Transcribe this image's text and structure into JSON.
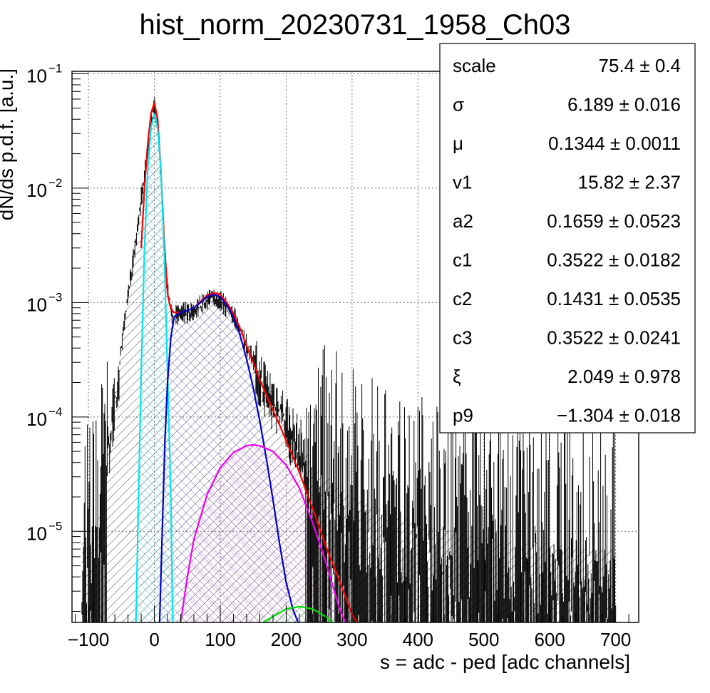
{
  "chart_data": {
    "type": "line",
    "title": "hist_norm_20230731_1958_Ch03",
    "xlabel": "s = adc - ped [adc channels]",
    "ylabel": "dN/ds p.d.f. [a.u.]",
    "xlim": [
      -125,
      735
    ],
    "ylim": [
      1.6e-06,
      0.105
    ],
    "yscale": "log",
    "grid": true,
    "x_ticks": [
      -100,
      0,
      100,
      200,
      300,
      400,
      500,
      600,
      700
    ],
    "x_tick_labels": [
      "−100",
      "0",
      "100",
      "200",
      "300",
      "400",
      "500",
      "600",
      "700"
    ],
    "y_ticks": [
      {
        "value": 0.1,
        "base": "10",
        "exp": "−1"
      },
      {
        "value": 0.01,
        "base": "10",
        "exp": "−2"
      },
      {
        "value": 0.001,
        "base": "10",
        "exp": "−3"
      },
      {
        "value": 0.0001,
        "base": "10",
        "exp": "−4"
      },
      {
        "value": 1e-05,
        "base": "10",
        "exp": "−5"
      }
    ],
    "stats_box": {
      "position": "top-right",
      "rows": [
        {
          "name": "scale",
          "value": "75.4",
          "error": "± 0.4"
        },
        {
          "name": "σ",
          "value": "6.189",
          "error": "± 0.016"
        },
        {
          "name": "μ",
          "value": "0.1344",
          "error": "± 0.0011"
        },
        {
          "name": "v1",
          "value": "15.82",
          "error": "± 2.37"
        },
        {
          "name": "a2",
          "value": "0.1659",
          "error": "± 0.0523"
        },
        {
          "name": "c1",
          "value": "0.3522",
          "error": "± 0.0182"
        },
        {
          "name": "c2",
          "value": "0.1431",
          "error": "± 0.0535"
        },
        {
          "name": "c3",
          "value": "0.3522",
          "error": "± 0.0241"
        },
        {
          "name": "ξ",
          "value": "2.049",
          "error": "± 0.978"
        },
        {
          "name": "p9",
          "value": "−1.304",
          "error": "± 0.018"
        }
      ]
    },
    "series": [
      {
        "color": "#000000",
        "role": "data-histogram",
        "x": [
          -110,
          -90,
          -75,
          -70,
          -60,
          -50,
          -40,
          -30,
          -20,
          -10,
          -5,
          0,
          5,
          10,
          15,
          20,
          25,
          30,
          40,
          50,
          60,
          70,
          80,
          90,
          100,
          110,
          120,
          130,
          140,
          150,
          160,
          170,
          180,
          190,
          200,
          220,
          240,
          260,
          280,
          300,
          350,
          400,
          450,
          500,
          550,
          600,
          650,
          700
        ],
        "y": [
          8e-06,
          8e-06,
          3e-05,
          6e-05,
          0.00015,
          0.0004,
          0.0012,
          0.003,
          0.0085,
          0.022,
          0.038,
          0.055,
          0.038,
          0.012,
          0.003,
          0.0013,
          0.0009,
          0.0008,
          0.00085,
          0.00085,
          0.0009,
          0.001,
          0.00112,
          0.0012,
          0.0011,
          0.00095,
          0.0008,
          0.0006,
          0.00045,
          0.00033,
          0.00024,
          0.00019,
          0.00016,
          0.00013,
          0.0001,
          6e-05,
          4e-05,
          3e-05,
          2.5e-05,
          2e-05,
          1.5e-05,
          1.2e-05,
          1e-05,
          9e-06,
          8e-06,
          8e-06,
          7e-06,
          7e-06
        ]
      },
      {
        "color": "#ff0000",
        "role": "total-fit",
        "x": [
          -20,
          -15,
          -10,
          -5,
          0,
          5,
          10,
          15,
          20,
          25,
          30,
          40,
          50,
          60,
          70,
          80,
          90,
          100,
          110,
          120,
          130,
          140,
          150,
          160,
          170,
          180,
          190,
          200,
          220,
          240,
          260,
          280,
          300,
          310
        ],
        "y": [
          0.003,
          0.01,
          0.025,
          0.045,
          0.056,
          0.04,
          0.014,
          0.0035,
          0.0012,
          0.00088,
          0.00082,
          0.00082,
          0.00085,
          0.0009,
          0.00102,
          0.00115,
          0.00122,
          0.00118,
          0.001,
          0.0008,
          0.0006,
          0.00042,
          0.0003,
          0.00021,
          0.000155,
          0.000115,
          8.5e-05,
          6.2e-05,
          3.3e-05,
          1.6e-05,
          7.5e-06,
          3.8e-06,
          1.9e-06,
          1.5e-06
        ]
      },
      {
        "color": "#00e5ee",
        "role": "pedestal-component",
        "x": [
          -28,
          -24,
          -20,
          -15,
          -10,
          -5,
          0,
          5,
          10,
          15,
          20,
          25,
          28
        ],
        "y": [
          1.6e-06,
          2e-05,
          0.00025,
          0.003,
          0.015,
          0.034,
          0.045,
          0.033,
          0.014,
          0.0028,
          0.00025,
          2e-05,
          1.6e-06
        ]
      },
      {
        "color": "#0000cc",
        "role": "single-pe-component",
        "x": [
          8,
          12,
          16,
          20,
          25,
          30,
          40,
          50,
          60,
          70,
          80,
          90,
          100,
          110,
          120,
          130,
          140,
          150,
          160,
          170,
          180,
          190,
          200,
          210,
          218
        ],
        "y": [
          1.6e-06,
          1e-05,
          6e-05,
          0.0002,
          0.0005,
          0.00075,
          0.00082,
          0.00085,
          0.0009,
          0.001,
          0.00112,
          0.00118,
          0.00112,
          0.00095,
          0.00075,
          0.00052,
          0.00032,
          0.00018,
          9.2e-05,
          4.3e-05,
          1.9e-05,
          7.8e-06,
          3.6e-06,
          2.1e-06,
          1.6e-06
        ]
      },
      {
        "color": "#ee00ee",
        "role": "double-pe-component",
        "x": [
          40,
          50,
          60,
          80,
          100,
          120,
          140,
          150,
          160,
          180,
          200,
          220,
          240,
          260,
          280,
          290
        ],
        "y": [
          1.6e-06,
          4e-06,
          8.5e-06,
          2.1e-05,
          3.6e-05,
          4.9e-05,
          5.6e-05,
          5.7e-05,
          5.6e-05,
          5e-05,
          3.8e-05,
          2.4e-05,
          1.2e-05,
          5.4e-06,
          2.2e-06,
          1.6e-06
        ]
      },
      {
        "color": "#00dd00",
        "role": "triple-pe-component",
        "x": [
          165,
          180,
          200,
          220,
          240,
          260,
          270
        ],
        "y": [
          1.6e-06,
          1.8e-06,
          2.1e-06,
          2.2e-06,
          2.1e-06,
          1.8e-06,
          1.6e-06
        ]
      }
    ]
  }
}
